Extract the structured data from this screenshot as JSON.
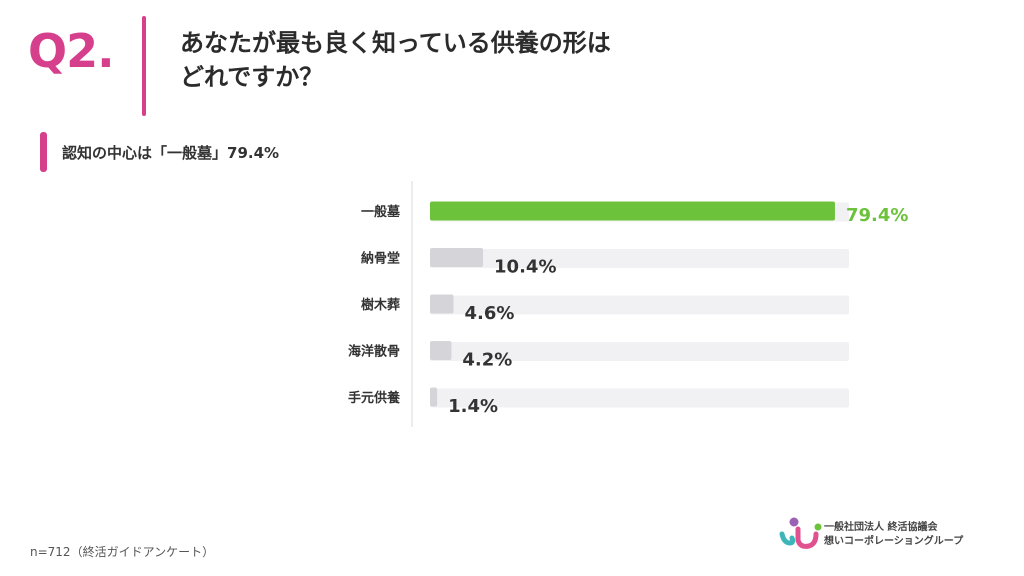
{
  "question": {
    "number": "Q2.",
    "title_line1": "あなたが最も良く知っている供養の形は",
    "title_line2": "どれですか？"
  },
  "subtitle": "認知の中心は「一般墓」79.4%",
  "footnote": "n=712（終活ガイドアンケート）",
  "logo": {
    "line1": "一般社団法人 終活協議会",
    "line2": "想いコーポレーショングループ"
  },
  "colors": {
    "accent": "#d63f8c",
    "highlight_bar": "#6cc23a",
    "bar": "#d5d5d9",
    "track": "#f1f1f3"
  },
  "chart_data": {
    "type": "bar",
    "orientation": "horizontal",
    "categories": [
      "一般墓",
      "納骨堂",
      "樹木葬",
      "海洋散骨",
      "手元供養"
    ],
    "values": [
      79.4,
      10.4,
      4.6,
      4.2,
      1.4
    ],
    "value_labels": [
      "79.4%",
      "10.4%",
      "4.6%",
      "4.2%",
      "1.4%"
    ],
    "unit": "%",
    "highlight_index": 0,
    "xlim": [
      0,
      100
    ],
    "grid": false,
    "legend": "none"
  }
}
